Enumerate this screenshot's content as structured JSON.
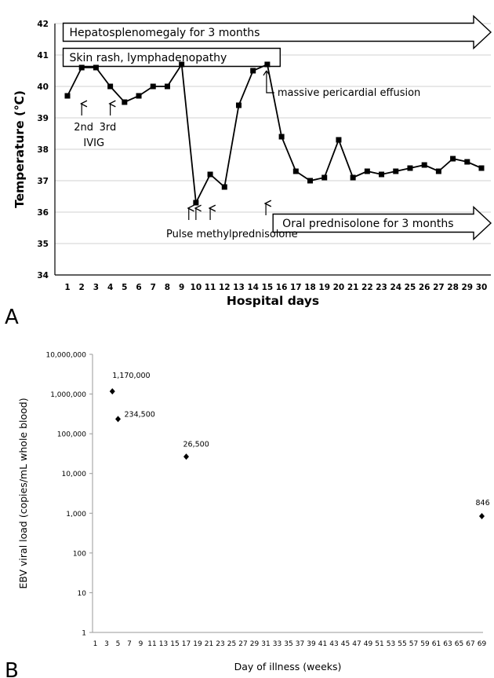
{
  "chart_data": [
    {
      "type": "line",
      "panel_label": "A",
      "xlabel": "Hospital days",
      "ylabel": "Temperature (℃)",
      "ylim": [
        34,
        42
      ],
      "yticks": [
        "34",
        "35",
        "36",
        "37",
        "38",
        "39",
        "40",
        "41",
        "42"
      ],
      "x": [
        1,
        2,
        3,
        4,
        5,
        6,
        7,
        8,
        9,
        10,
        11,
        12,
        13,
        14,
        15,
        16,
        17,
        18,
        19,
        20,
        21,
        22,
        23,
        24,
        25,
        26,
        27,
        28,
        29,
        30
      ],
      "xticks": [
        "1",
        "2",
        "3",
        "4",
        "5",
        "6",
        "7",
        "8",
        "9",
        "10",
        "11",
        "12",
        "13",
        "14",
        "15",
        "16",
        "17",
        "18",
        "19",
        "20",
        "21",
        "22",
        "23",
        "24",
        "25",
        "26",
        "27",
        "28",
        "29",
        "30"
      ],
      "series": [
        {
          "values": [
            39.7,
            40.6,
            40.6,
            40.0,
            39.5,
            39.7,
            40.0,
            40.0,
            40.7,
            36.3,
            37.2,
            36.8,
            39.4,
            40.5,
            40.7,
            38.4,
            37.3,
            37.0,
            37.1,
            38.3,
            37.1,
            37.3,
            37.2,
            37.3,
            37.4,
            37.5,
            37.3,
            37.7,
            37.6,
            37.4
          ]
        }
      ],
      "bars": [
        {
          "text": "Hepatosplenomegaly for 3 months",
          "x_start": 0.7,
          "arrow": true,
          "y": 41.8
        },
        {
          "text": "Skin rash, lymphadenopathy",
          "x_start": 0.7,
          "x_end": 15.9,
          "arrow": false,
          "y": 41.0
        },
        {
          "text": "Oral prednisolone for 3 months",
          "x_start": 15.4,
          "arrow": true,
          "y": 35.7
        }
      ],
      "annotations": [
        {
          "text": "massive pericardial effusion",
          "x": 15
        },
        {
          "text": "2nd",
          "x": 2
        },
        {
          "text": "3rd",
          "x": 4
        },
        {
          "text": "IVIG",
          "x": 3
        },
        {
          "text": "Pulse methylprednisolone",
          "x": 10.5
        }
      ],
      "arrows_up": [
        2,
        4,
        9.5,
        10,
        11,
        14.9
      ]
    },
    {
      "type": "scatter",
      "panel_label": "B",
      "xlabel": "Day of illness (weeks)",
      "ylabel": "EBV viral load (copies/mL whole blood)",
      "yscale": "log",
      "ylim": [
        1,
        10000000
      ],
      "yticks": [
        "1",
        "10",
        "100",
        "1,000",
        "10,000",
        "100,000",
        "1,000,000",
        "10,000,000"
      ],
      "xlim": [
        0,
        69
      ],
      "xticks": [
        "1",
        "3",
        "5",
        "7",
        "9",
        "11",
        "13",
        "15",
        "17",
        "19",
        "21",
        "23",
        "25",
        "27",
        "29",
        "31",
        "33",
        "35",
        "37",
        "39",
        "41",
        "43",
        "45",
        "47",
        "49",
        "51",
        "53",
        "55",
        "57",
        "59",
        "61",
        "63",
        "65",
        "67",
        "69"
      ],
      "points": [
        {
          "x": 4,
          "y": 1170000,
          "label": "1,170,000"
        },
        {
          "x": 5,
          "y": 234500,
          "label": "234,500"
        },
        {
          "x": 17,
          "y": 26500,
          "label": "26,500"
        },
        {
          "x": 69,
          "y": 846,
          "label": "846"
        }
      ]
    }
  ]
}
